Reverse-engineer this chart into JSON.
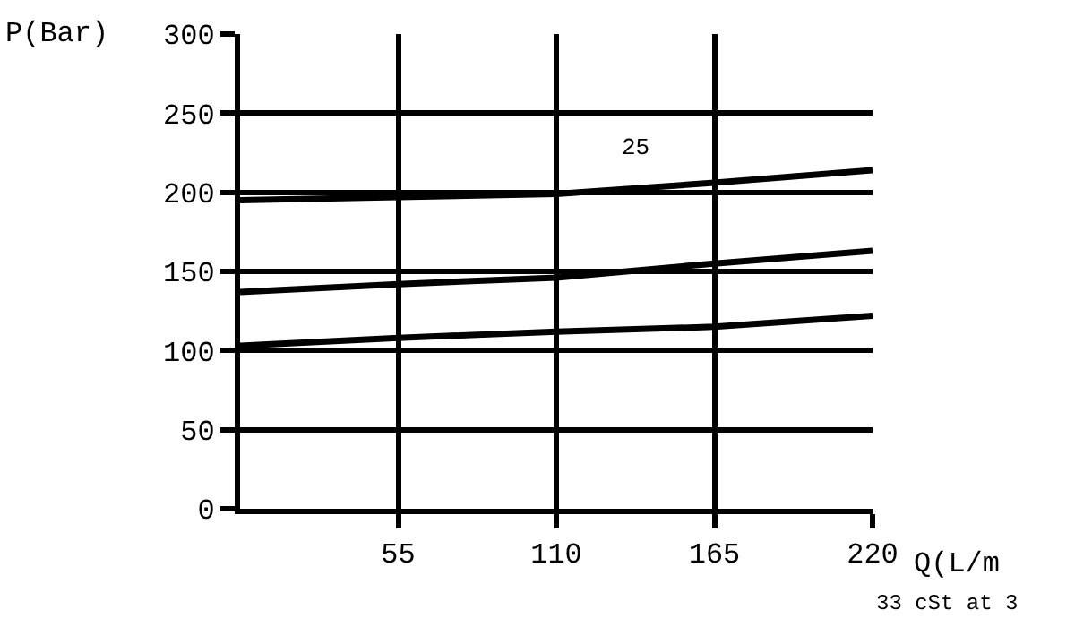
{
  "chart_data": {
    "type": "line",
    "ylabel": "P(Bar)",
    "xlabel": "Q(L/m",
    "x": [
      0,
      55,
      110,
      165,
      220
    ],
    "series": [
      {
        "color": "#000000",
        "values": [
          195,
          197,
          199,
          206,
          214
        ]
      },
      {
        "color": "#000000",
        "values": [
          137,
          142,
          146,
          155,
          163
        ]
      },
      {
        "color": "#000000",
        "values": [
          103,
          108,
          112,
          115,
          122
        ]
      }
    ],
    "xlim": [
      0,
      220
    ],
    "xticks": [
      55,
      110,
      165,
      220
    ],
    "ylim": [
      0,
      300
    ],
    "yticks": [
      0,
      50,
      100,
      150,
      200,
      250,
      300
    ],
    "grid": true,
    "marker": "none",
    "line_style": "solid",
    "annotations": [
      "25",
      "33 cSt at 3"
    ]
  }
}
